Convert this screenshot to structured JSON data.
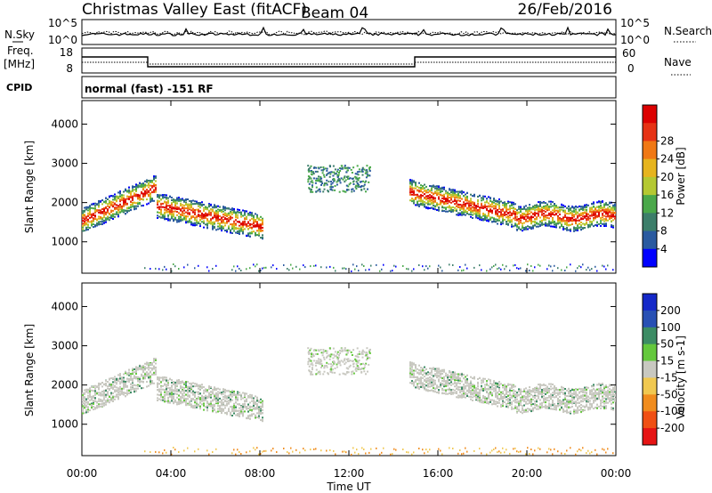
{
  "header": {
    "title": "Christmas Valley East (fitACF)",
    "beam": "Beam 04",
    "date": "26/Feb/2016"
  },
  "noise_panel": {
    "left_label": "N.Sky",
    "right_label": "N.Search",
    "left_ticks": [
      "10^5",
      "10^0"
    ],
    "right_ticks": [
      "10^5",
      "10^0"
    ]
  },
  "freq_panel": {
    "left_label_1": "Freq.",
    "left_label_2": "[MHz]",
    "right_label": "Nave",
    "left_ticks": [
      "18",
      "8"
    ],
    "right_ticks": [
      "60",
      "0"
    ]
  },
  "cpid_panel": {
    "label": "CPID",
    "text": "normal (fast) -151 RF"
  },
  "chart_data": [
    {
      "type": "heatmap",
      "name": "power",
      "ylabel": "Slant Range [km]",
      "yticks": [
        "1000",
        "2000",
        "3000",
        "4000"
      ],
      "ylim": [
        200,
        4600
      ],
      "colorbar_label": "Power [dB]",
      "colorbar_ticks": [
        "4",
        "8",
        "12",
        "16",
        "20",
        "24",
        "28"
      ],
      "colorbar_colors": [
        "#0000ff",
        "#2a5aa0",
        "#3c7e6a",
        "#4aa84a",
        "#b4c832",
        "#e6b41e",
        "#f07814",
        "#e63214",
        "#dc0000"
      ]
    },
    {
      "type": "heatmap",
      "name": "velocity",
      "ylabel": "Slant Range [km]",
      "yticks": [
        "1000",
        "2000",
        "3000",
        "4000"
      ],
      "ylim": [
        200,
        4600
      ],
      "colorbar_label": "Velocity [m s-1]",
      "colorbar_ticks": [
        "200",
        "100",
        "50",
        "15",
        "-15",
        "-50",
        "-100",
        "-200"
      ],
      "colorbar_colors": [
        "#1428c8",
        "#2850b4",
        "#3c8c64",
        "#64c83c",
        "#c8c8c0",
        "#f0c850",
        "#f08c1e",
        "#f05014",
        "#e61414"
      ]
    }
  ],
  "time_axis": {
    "xlabel": "Time UT",
    "ticks": [
      "00:00",
      "04:00",
      "08:00",
      "12:00",
      "16:00",
      "20:00",
      "00:00"
    ]
  }
}
